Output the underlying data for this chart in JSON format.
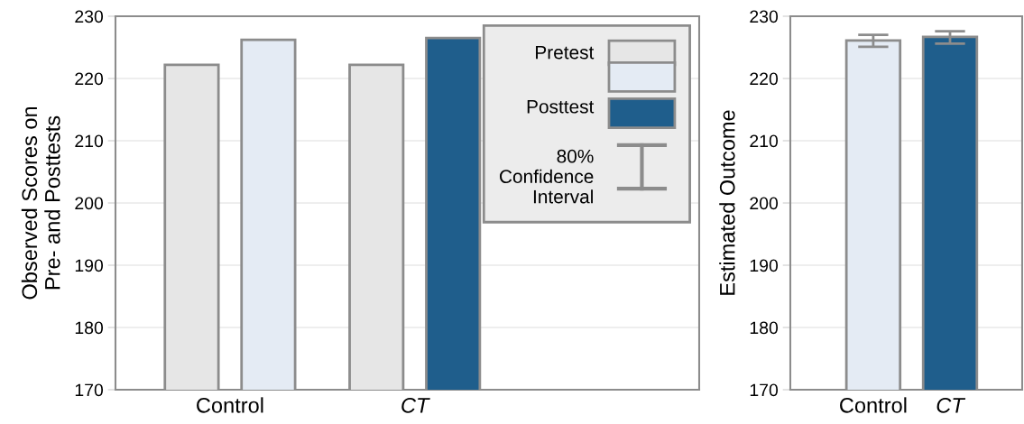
{
  "chart_data": [
    {
      "type": "bar",
      "ylabel": "Observed Scores on\nPre- and Posttests",
      "categories": [
        "Control",
        "CT"
      ],
      "ylim": [
        170,
        230
      ],
      "yticks": [
        170,
        180,
        190,
        200,
        210,
        220,
        230
      ],
      "grid": "y",
      "legend": "top right",
      "series": [
        {
          "name": "Pretest",
          "color": "#e6e6e6",
          "values": [
            222.2,
            222.2
          ]
        },
        {
          "name": "Posttest",
          "colors": [
            "#e4ebf4",
            "#1f5e8c"
          ],
          "values": [
            226.2,
            226.5
          ]
        }
      ],
      "annotations": [
        "80%\nConfidence\nInterval"
      ]
    },
    {
      "type": "bar",
      "ylabel": "Estimated Outcome",
      "categories": [
        "Control",
        "CT"
      ],
      "ylim": [
        170,
        230
      ],
      "yticks": [
        170,
        180,
        190,
        200,
        210,
        220,
        230
      ],
      "grid": "y",
      "series": [
        {
          "colors": [
            "#e4ebf4",
            "#1f5e8c"
          ],
          "values": [
            226.1,
            226.7
          ],
          "errors": [
            [
              225.1,
              227.0
            ],
            [
              225.6,
              227.6
            ]
          ]
        }
      ]
    }
  ]
}
